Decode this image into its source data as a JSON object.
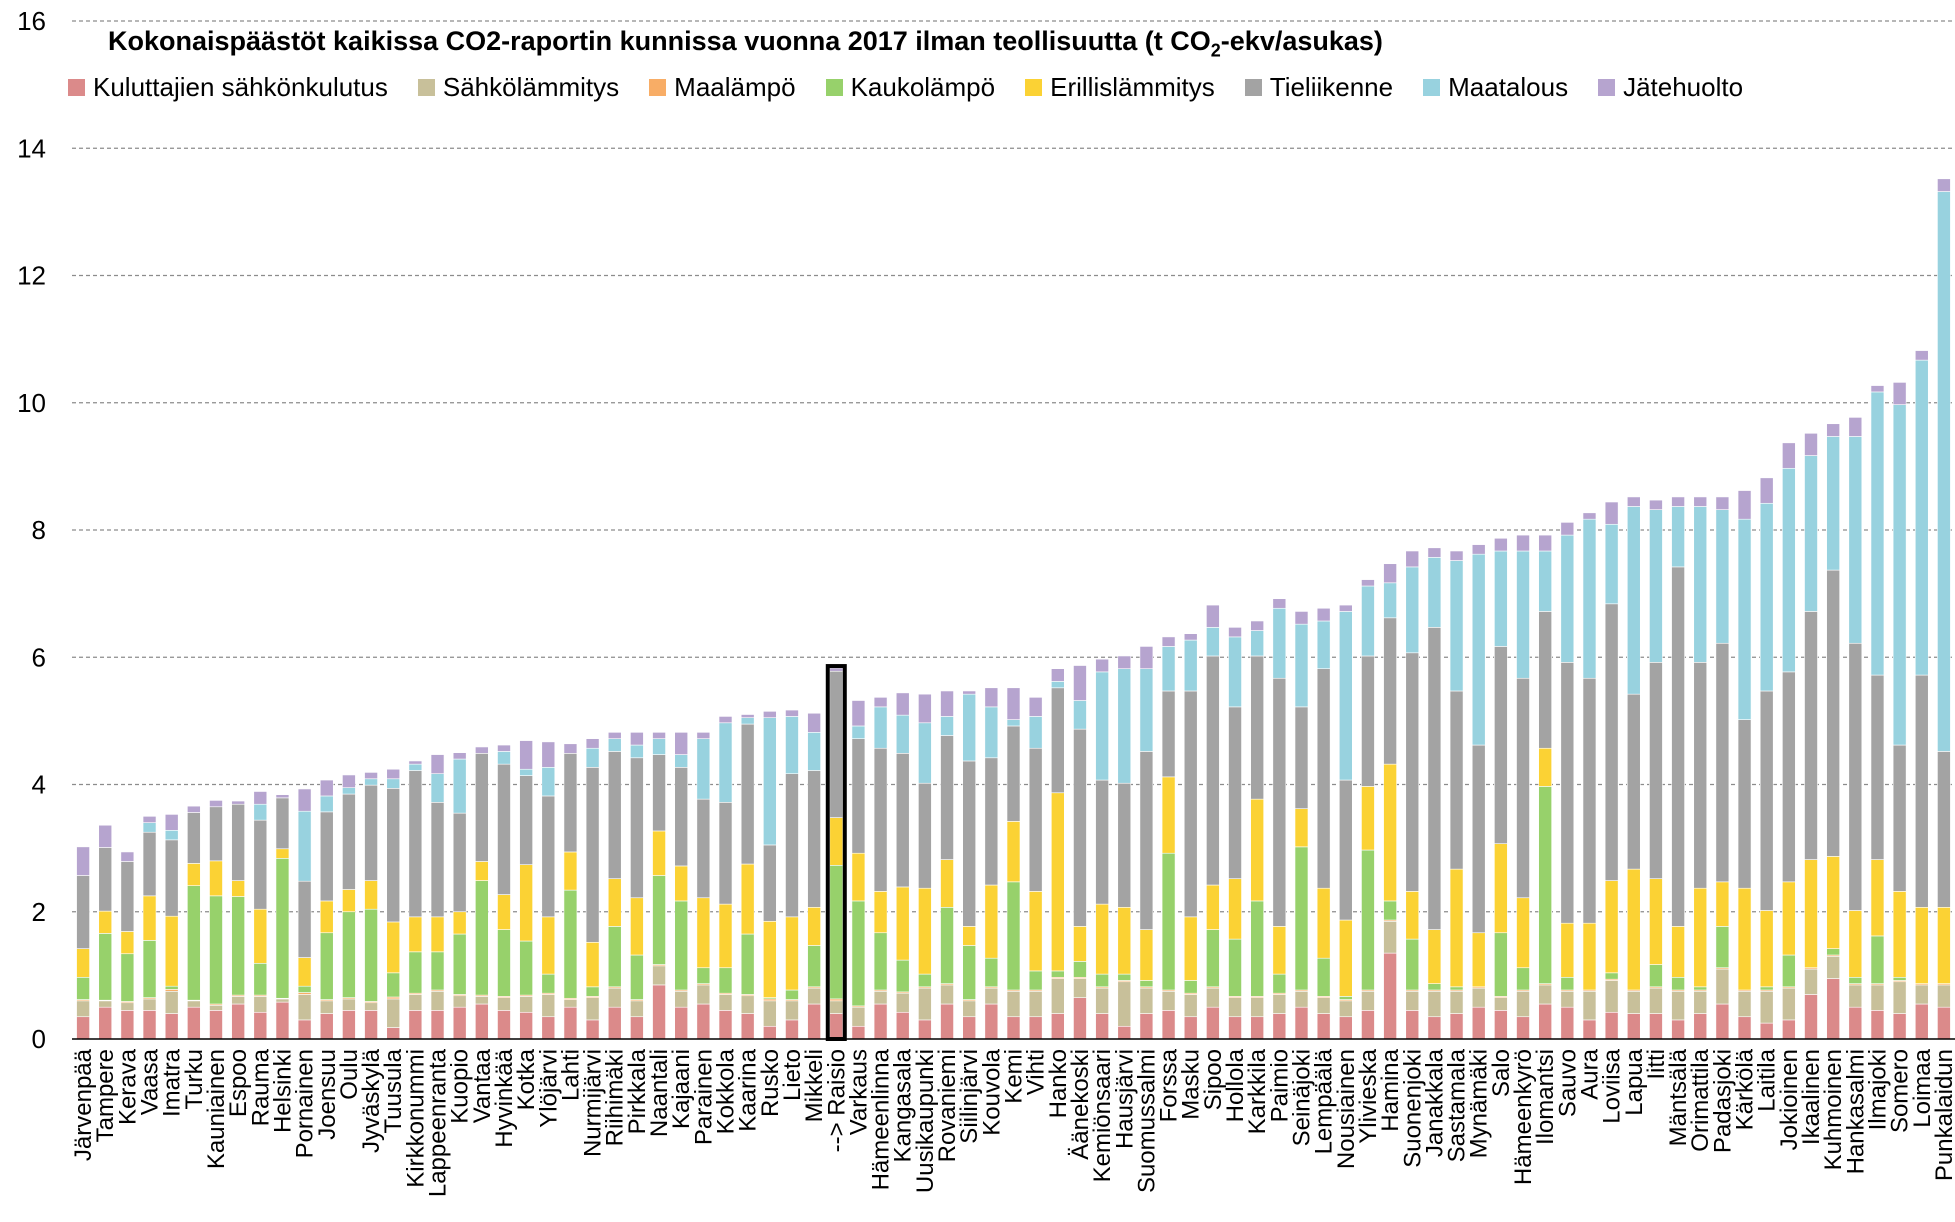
{
  "chart_data": {
    "type": "bar",
    "stacked": true,
    "title_pre": "Kokonaispäästöt kaikissa CO2-raportin kunnissa vuonna 2017 ilman teollisuutta (t CO",
    "title_sub": "2",
    "title_post": "-ekv/asukas)",
    "ylim": [
      0,
      16
    ],
    "yticks": [
      "0",
      "2",
      "4",
      "6",
      "8",
      "10",
      "12",
      "14",
      "16"
    ],
    "grid": true,
    "legend_position": "top",
    "highlighted_category": "--> Raisio",
    "series": [
      {
        "name": "Kuluttajien sähkönkulutus",
        "color": "#db8a8a"
      },
      {
        "name": "Sähkölämmitys",
        "color": "#c8c09a"
      },
      {
        "name": "Maalämpö",
        "color": "#f8ad66"
      },
      {
        "name": "Kaukolämpö",
        "color": "#97d16b"
      },
      {
        "name": "Erillislämmitys",
        "color": "#fbd234"
      },
      {
        "name": "Tieliikenne",
        "color": "#a3a3a3"
      },
      {
        "name": "Maatalous",
        "color": "#98d2df"
      },
      {
        "name": "Jätehuolto",
        "color": "#b6a4cf"
      }
    ],
    "categories": [
      "Järvenpää",
      "Tampere",
      "Kerava",
      "Vaasa",
      "Imatra",
      "Turku",
      "Kauniainen",
      "Espoo",
      "Rauma",
      "Helsinki",
      "Pornainen",
      "Joensuu",
      "Oulu",
      "Jyväskylä",
      "Tuusula",
      "Kirkkonummi",
      "Lappeenranta",
      "Kuopio",
      "Vantaa",
      "Hyvinkää",
      "Kotka",
      "Ylöjärvi",
      "Lahti",
      "Nurmijärvi",
      "Riihimäki",
      "Pirkkala",
      "Naantali",
      "Kajaani",
      "Parainen",
      "Kokkola",
      "Kaarina",
      "Rusko",
      "Lieto",
      "Mikkeli",
      "--> Raisio",
      "Varkaus",
      "Hämeenlinna",
      "Kangasala",
      "Uusikaupunki",
      "Rovaniemi",
      "Siilinjärvi",
      "Kouvola",
      "Kemi",
      "Vihti",
      "Hanko",
      "Äänekoski",
      "Kemiönsaari",
      "Hausjärvi",
      "Suomussalmi",
      "Forssa",
      "Masku",
      "Sipoo",
      "Hollola",
      "Karkkila",
      "Paimio",
      "Seinäjoki",
      "Lempäälä",
      "Nousiainen",
      "Ylivieska",
      "Hamina",
      "Suonenjoki",
      "Janakkala",
      "Sastamala",
      "Mynämäki",
      "Salo",
      "Hämeenkyrö",
      "Ilomantsi",
      "Sauvo",
      "Aura",
      "Loviisa",
      "Lapua",
      "Iitti",
      "Mäntsälä",
      "Orimattila",
      "Padasjoki",
      "Kärkölä",
      "Laitila",
      "Jokioinen",
      "Ikaalinen",
      "Kuhmoinen",
      "Hankasalmi",
      "Ilmajoki",
      "Somero",
      "Loimaa",
      "Punkalaidun"
    ],
    "values": [
      [
        0.35,
        0.25,
        0.02,
        0.35,
        0.45,
        1.15,
        0,
        0.45
      ],
      [
        0.5,
        0.1,
        0.01,
        1.05,
        0.35,
        1.0,
        0,
        0.35
      ],
      [
        0.45,
        0.12,
        0.02,
        0.75,
        0.35,
        1.1,
        0,
        0.15
      ],
      [
        0.45,
        0.18,
        0.02,
        0.9,
        0.7,
        1.0,
        0.15,
        0.1
      ],
      [
        0.4,
        0.35,
        0.03,
        0.05,
        1.1,
        1.2,
        0.15,
        0.25
      ],
      [
        0.5,
        0.1,
        0.01,
        1.8,
        0.35,
        0.8,
        0,
        0.1
      ],
      [
        0.45,
        0.08,
        0.02,
        1.7,
        0.55,
        0.85,
        0,
        0.1
      ],
      [
        0.55,
        0.12,
        0.02,
        1.55,
        0.25,
        1.2,
        0,
        0.05
      ],
      [
        0.42,
        0.25,
        0.02,
        0.5,
        0.85,
        1.4,
        0.25,
        0.2
      ],
      [
        0.58,
        0.05,
        0.01,
        2.2,
        0.15,
        0.8,
        0,
        0.05
      ],
      [
        0.3,
        0.4,
        0.03,
        0.1,
        0.45,
        1.2,
        1.1,
        0.35
      ],
      [
        0.4,
        0.2,
        0.02,
        1.05,
        0.5,
        1.4,
        0.25,
        0.25
      ],
      [
        0.45,
        0.18,
        0.02,
        1.35,
        0.35,
        1.5,
        0.1,
        0.2
      ],
      [
        0.45,
        0.12,
        0.02,
        1.45,
        0.45,
        1.5,
        0.1,
        0.1
      ],
      [
        0.18,
        0.45,
        0.03,
        0.38,
        0.8,
        2.1,
        0.15,
        0.15
      ],
      [
        0.45,
        0.25,
        0.02,
        0.65,
        0.55,
        2.3,
        0.1,
        0.05
      ],
      [
        0.45,
        0.3,
        0.02,
        0.6,
        0.55,
        1.8,
        0.45,
        0.3
      ],
      [
        0.5,
        0.18,
        0.02,
        0.95,
        0.35,
        1.55,
        0.85,
        0.1
      ],
      [
        0.55,
        0.12,
        0.02,
        1.8,
        0.3,
        1.7,
        0,
        0.1
      ],
      [
        0.45,
        0.2,
        0.02,
        1.05,
        0.55,
        2.05,
        0.2,
        0.1
      ],
      [
        0.42,
        0.25,
        0.02,
        0.85,
        1.2,
        1.4,
        0.1,
        0.45
      ],
      [
        0.35,
        0.35,
        0.02,
        0.3,
        0.9,
        1.9,
        0.45,
        0.4
      ],
      [
        0.5,
        0.12,
        0.02,
        1.7,
        0.6,
        1.55,
        0,
        0.15
      ],
      [
        0.3,
        0.35,
        0.02,
        0.15,
        0.7,
        2.75,
        0.3,
        0.15
      ],
      [
        0.5,
        0.3,
        0.02,
        0.95,
        0.75,
        2.0,
        0.2,
        0.1
      ],
      [
        0.35,
        0.25,
        0.02,
        0.7,
        0.9,
        2.2,
        0.2,
        0.2
      ],
      [
        0.85,
        0.3,
        0.02,
        1.4,
        0.7,
        1.2,
        0.25,
        0.1
      ],
      [
        0.5,
        0.25,
        0.02,
        1.4,
        0.55,
        1.55,
        0.2,
        0.35
      ],
      [
        0.55,
        0.3,
        0.02,
        0.25,
        1.1,
        1.55,
        0.95,
        0.1
      ],
      [
        0.45,
        0.25,
        0.02,
        0.4,
        1.0,
        1.6,
        1.25,
        0.1
      ],
      [
        0.4,
        0.28,
        0.02,
        0.95,
        1.1,
        2.2,
        0.1,
        0.05
      ],
      [
        0.2,
        0.4,
        0.03,
        0.02,
        1.2,
        1.2,
        2.0,
        0.1
      ],
      [
        0.3,
        0.3,
        0.02,
        0.15,
        1.15,
        2.25,
        0.9,
        0.1
      ],
      [
        0.55,
        0.25,
        0.02,
        0.65,
        0.6,
        2.15,
        0.6,
        0.3
      ],
      [
        0.4,
        0.2,
        0.03,
        2.1,
        0.75,
        2.3,
        0,
        0.05
      ],
      [
        0.2,
        0.3,
        0.02,
        1.65,
        0.75,
        1.8,
        0.2,
        0.4
      ],
      [
        0.55,
        0.2,
        0.02,
        0.9,
        0.65,
        2.25,
        0.65,
        0.15
      ],
      [
        0.42,
        0.3,
        0.02,
        0.5,
        1.15,
        2.1,
        0.6,
        0.35
      ],
      [
        0.3,
        0.5,
        0.02,
        0.2,
        1.35,
        1.65,
        0.95,
        0.45
      ],
      [
        0.55,
        0.3,
        0.02,
        1.2,
        0.75,
        1.95,
        0.3,
        0.4
      ],
      [
        0.35,
        0.25,
        0.02,
        0.85,
        0.3,
        2.6,
        1.05,
        0.05
      ],
      [
        0.55,
        0.25,
        0.02,
        0.45,
        1.15,
        2.0,
        0.8,
        0.3
      ],
      [
        0.35,
        0.4,
        0.02,
        1.7,
        0.95,
        1.5,
        0.1,
        0.5
      ],
      [
        0.35,
        0.4,
        0.02,
        0.3,
        1.25,
        2.25,
        0.5,
        0.3
      ],
      [
        0.4,
        0.55,
        0.02,
        0.1,
        2.8,
        1.65,
        0.1,
        0.2
      ],
      [
        0.65,
        0.3,
        0.02,
        0.25,
        0.55,
        3.1,
        0.45,
        0.55
      ],
      [
        0.4,
        0.4,
        0.02,
        0.2,
        1.1,
        1.95,
        1.7,
        0.2
      ],
      [
        0.2,
        0.7,
        0.02,
        0.1,
        1.05,
        1.95,
        1.8,
        0.2
      ],
      [
        0.4,
        0.4,
        0.02,
        0.1,
        0.8,
        2.8,
        1.3,
        0.35
      ],
      [
        0.45,
        0.3,
        0.02,
        2.15,
        1.2,
        1.35,
        0.7,
        0.15
      ],
      [
        0.35,
        0.35,
        0.02,
        0.2,
        1.0,
        3.55,
        0.8,
        0.1
      ],
      [
        0.5,
        0.3,
        0.02,
        0.9,
        0.7,
        3.6,
        0.45,
        0.35
      ],
      [
        0.35,
        0.3,
        0.02,
        0.9,
        0.95,
        2.7,
        1.1,
        0.15
      ],
      [
        0.35,
        0.3,
        0.02,
        1.5,
        1.6,
        2.25,
        0.4,
        0.15
      ],
      [
        0.4,
        0.3,
        0.02,
        0.3,
        0.75,
        3.9,
        1.1,
        0.15
      ],
      [
        0.5,
        0.25,
        0.02,
        2.25,
        0.6,
        1.6,
        1.3,
        0.2
      ],
      [
        0.4,
        0.25,
        0.02,
        0.6,
        1.1,
        3.45,
        0.75,
        0.2
      ],
      [
        0.35,
        0.25,
        0.02,
        0.05,
        1.2,
        2.2,
        2.65,
        0.1
      ],
      [
        0.45,
        0.3,
        0.02,
        2.2,
        1.0,
        2.05,
        1.1,
        0.1
      ],
      [
        1.35,
        0.5,
        0.02,
        0.3,
        2.15,
        2.3,
        0.55,
        0.3
      ],
      [
        0.45,
        0.3,
        0.02,
        0.8,
        0.75,
        3.75,
        1.35,
        0.25
      ],
      [
        0.35,
        0.4,
        0.02,
        0.1,
        0.85,
        4.75,
        1.1,
        0.15
      ],
      [
        0.4,
        0.35,
        0.02,
        0.05,
        1.85,
        2.8,
        2.05,
        0.15
      ],
      [
        0.5,
        0.3,
        0.02,
        0.0,
        0.85,
        2.95,
        3.0,
        0.15
      ],
      [
        0.45,
        0.2,
        0.02,
        1.0,
        1.4,
        3.1,
        1.5,
        0.2
      ],
      [
        0.35,
        0.4,
        0.02,
        0.35,
        1.1,
        3.45,
        2.0,
        0.25
      ],
      [
        0.55,
        0.3,
        0.02,
        3.1,
        0.6,
        2.15,
        0.95,
        0.25
      ],
      [
        0.5,
        0.25,
        0.02,
        0.2,
        0.85,
        4.1,
        2.0,
        0.2
      ],
      [
        0.3,
        0.45,
        0.02,
        0.0,
        1.05,
        3.85,
        2.5,
        0.1
      ],
      [
        0.42,
        0.5,
        0.02,
        0.1,
        1.45,
        4.35,
        1.25,
        0.35
      ],
      [
        0.4,
        0.35,
        0.02,
        0.0,
        1.9,
        2.75,
        2.95,
        0.15
      ],
      [
        0.4,
        0.4,
        0.02,
        0.35,
        1.35,
        3.4,
        2.4,
        0.15
      ],
      [
        0.3,
        0.45,
        0.02,
        0.2,
        0.8,
        5.65,
        0.95,
        0.15
      ],
      [
        0.4,
        0.35,
        0.02,
        0.05,
        1.55,
        3.55,
        2.45,
        0.15
      ],
      [
        0.55,
        0.55,
        0.02,
        0.65,
        0.7,
        3.75,
        2.1,
        0.2
      ],
      [
        0.35,
        0.4,
        0.02,
        0.0,
        1.6,
        2.65,
        3.15,
        0.45
      ],
      [
        0.25,
        0.5,
        0.02,
        0.05,
        1.2,
        3.45,
        2.95,
        0.4
      ],
      [
        0.3,
        0.5,
        0.02,
        0.5,
        1.15,
        3.3,
        3.2,
        0.4
      ],
      [
        0.7,
        0.4,
        0.02,
        0.0,
        1.7,
        3.9,
        2.45,
        0.35
      ],
      [
        0.95,
        0.35,
        0.02,
        0.1,
        1.45,
        4.5,
        2.1,
        0.2
      ],
      [
        0.5,
        0.35,
        0.02,
        0.1,
        1.05,
        4.2,
        3.25,
        0.3
      ],
      [
        0.45,
        0.4,
        0.02,
        0.75,
        1.2,
        2.9,
        4.45,
        0.1
      ],
      [
        0.4,
        0.5,
        0.02,
        0.05,
        1.35,
        2.3,
        5.35,
        0.35
      ],
      [
        0.55,
        0.3,
        0.02,
        0.0,
        1.2,
        3.65,
        4.95,
        0.15
      ],
      [
        0.5,
        0.35,
        0.02,
        0.0,
        1.2,
        2.45,
        8.8,
        0.2
      ]
    ]
  }
}
